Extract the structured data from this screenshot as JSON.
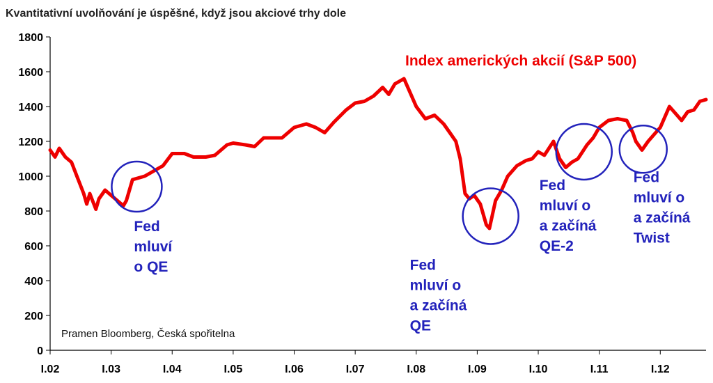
{
  "title": "Kvantitativní uvolňování je úspěšné, když jsou akciové trhy dole",
  "source": "Pramen Bloomberg, Česká spořitelna",
  "colors": {
    "series": "#ee0000",
    "annotation": "#2222bb",
    "axis": "#000000"
  },
  "chart_data": {
    "type": "line",
    "title": "Kvantitativní uvolňování je úspěšné, když jsou akciové trhy dole",
    "xlabel": "",
    "ylabel": "",
    "ylim": [
      0,
      1800
    ],
    "xlim": [
      2002.0,
      2012.75
    ],
    "yticks": [
      0,
      200,
      400,
      600,
      800,
      1000,
      1200,
      1400,
      1600,
      1800
    ],
    "xticks": [
      {
        "value": 2002,
        "label": "I.02"
      },
      {
        "value": 2003,
        "label": "I.03"
      },
      {
        "value": 2004,
        "label": "I.04"
      },
      {
        "value": 2005,
        "label": "I.05"
      },
      {
        "value": 2006,
        "label": "I.06"
      },
      {
        "value": 2007,
        "label": "I.07"
      },
      {
        "value": 2008,
        "label": "I.08"
      },
      {
        "value": 2009,
        "label": "I.09"
      },
      {
        "value": 2010,
        "label": "I.10"
      },
      {
        "value": 2011,
        "label": "I.11"
      },
      {
        "value": 2012,
        "label": "I.12"
      }
    ],
    "grid": false,
    "series": [
      {
        "name": "Index amerických akcií (S&P 500)",
        "x": [
          2002.0,
          2002.08,
          2002.15,
          2002.25,
          2002.35,
          2002.45,
          2002.55,
          2002.6,
          2002.65,
          2002.75,
          2002.8,
          2002.9,
          2003.0,
          2003.1,
          2003.2,
          2003.25,
          2003.35,
          2003.45,
          2003.55,
          2003.65,
          2003.75,
          2003.85,
          2004.0,
          2004.2,
          2004.35,
          2004.55,
          2004.7,
          2004.9,
          2005.0,
          2005.2,
          2005.35,
          2005.5,
          2005.65,
          2005.8,
          2006.0,
          2006.2,
          2006.35,
          2006.5,
          2006.65,
          2006.85,
          2007.0,
          2007.15,
          2007.3,
          2007.45,
          2007.55,
          2007.65,
          2007.8,
          2007.9,
          2008.0,
          2008.15,
          2008.3,
          2008.45,
          2008.55,
          2008.65,
          2008.72,
          2008.8,
          2008.87,
          2008.95,
          2009.05,
          2009.15,
          2009.2,
          2009.3,
          2009.4,
          2009.5,
          2009.65,
          2009.8,
          2009.9,
          2010.0,
          2010.1,
          2010.25,
          2010.35,
          2010.45,
          2010.55,
          2010.65,
          2010.8,
          2010.9,
          2011.0,
          2011.15,
          2011.3,
          2011.45,
          2011.55,
          2011.6,
          2011.7,
          2011.8,
          2011.9,
          2012.0,
          2012.15,
          2012.25,
          2012.35,
          2012.45,
          2012.55,
          2012.65,
          2012.75
        ],
        "y": [
          1150,
          1110,
          1160,
          1110,
          1080,
          990,
          900,
          840,
          900,
          810,
          870,
          920,
          890,
          860,
          830,
          860,
          980,
          990,
          1000,
          1020,
          1040,
          1060,
          1130,
          1130,
          1110,
          1110,
          1120,
          1180,
          1190,
          1180,
          1170,
          1220,
          1220,
          1220,
          1280,
          1300,
          1280,
          1250,
          1310,
          1380,
          1420,
          1430,
          1460,
          1510,
          1470,
          1530,
          1560,
          1480,
          1400,
          1330,
          1350,
          1300,
          1250,
          1200,
          1100,
          900,
          870,
          890,
          840,
          720,
          700,
          860,
          920,
          1000,
          1060,
          1090,
          1100,
          1140,
          1120,
          1200,
          1100,
          1050,
          1080,
          1100,
          1180,
          1220,
          1280,
          1320,
          1330,
          1320,
          1250,
          1200,
          1150,
          1200,
          1240,
          1280,
          1400,
          1360,
          1320,
          1370,
          1380,
          1430,
          1440
        ]
      }
    ],
    "annotations": [
      {
        "x": 2003.42,
        "y": 940,
        "lines": [
          "Fed",
          "mluví",
          "o QE"
        ]
      },
      {
        "x": 2009.22,
        "y": 770,
        "lines": [
          "Fed",
          "mluví o",
          "a začíná",
          "QE"
        ]
      },
      {
        "x": 2010.75,
        "y": 1140,
        "lines": [
          "Fed",
          "mluví o",
          "a začíná",
          "QE-2"
        ]
      },
      {
        "x": 2011.72,
        "y": 1155,
        "lines": [
          "Fed",
          "mluví o",
          "a začíná",
          "Twist"
        ]
      }
    ]
  }
}
